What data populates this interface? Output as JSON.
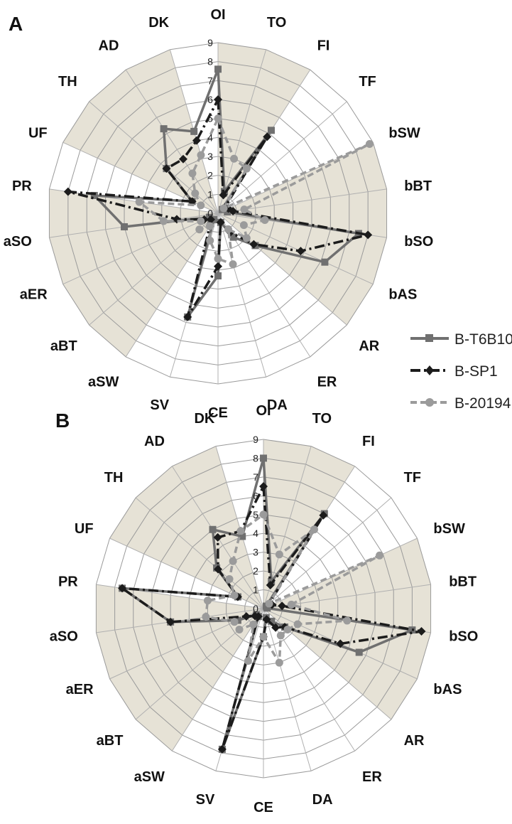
{
  "colors": {
    "shade": "#e6e2d6",
    "grid": "#9a9a9a",
    "spoke": "#b0b0b0"
  },
  "chart_data": [
    {
      "type": "radar",
      "panel": "A",
      "categories": [
        "OI",
        "TO",
        "FI",
        "TF",
        "bSW",
        "bBT",
        "bSO",
        "bAS",
        "AR",
        "ER",
        "DA",
        "CE",
        "SV",
        "aSW",
        "aBT",
        "aER",
        "aSO",
        "PR",
        "UF",
        "TH",
        "AD",
        "DK"
      ],
      "shaded_categories": [
        "OI",
        "TO",
        "bSW",
        "bBT",
        "bSO",
        "bAS",
        "aSW",
        "aBT",
        "aER",
        "aSO",
        "UF",
        "TH",
        "AD"
      ],
      "rticks": [
        "0",
        "1",
        "2",
        "3",
        "4",
        "5",
        "6",
        "7",
        "8",
        "9"
      ],
      "rlim": [
        0,
        9
      ],
      "series": [
        {
          "name": "B-T6B10",
          "color": "#707070",
          "style": "solid",
          "marker": "square",
          "values": [
            7.6,
            1.2,
            5.2,
            0.3,
            0.5,
            0.5,
            7.5,
            6.2,
            2.6,
            1.5,
            0.5,
            3.3,
            5.7,
            0.4,
            0.5,
            0.5,
            5.0,
            6.6,
            1.5,
            3.6,
            5.3,
            4.5
          ]
        },
        {
          "name": "B-SP1",
          "color": "#1c1c1c",
          "style": "dashdot",
          "marker": "diamond",
          "values": [
            6.0,
            1.0,
            4.8,
            0.5,
            0.6,
            0.8,
            8.0,
            4.8,
            2.5,
            1.2,
            0.5,
            2.8,
            5.7,
            0.8,
            0.5,
            0.8,
            2.2,
            8.0,
            1.5,
            3.6,
            3.4,
            4.0
          ]
        },
        {
          "name": "B-20194",
          "color": "#9b9b9b",
          "style": "dashed",
          "marker": "circle",
          "values": [
            5.0,
            3.0,
            2.8,
            0.4,
            8.8,
            1.4,
            2.5,
            1.5,
            2.0,
            1.0,
            2.8,
            2.4,
            1.5,
            0.8,
            1.3,
            1.0,
            2.9,
            4.2,
            1.0,
            1.6,
            2.5,
            3.2
          ]
        }
      ]
    },
    {
      "type": "radar",
      "panel": "B",
      "categories": [
        "OI",
        "TO",
        "FI",
        "TF",
        "bSW",
        "bBT",
        "bSO",
        "bAS",
        "AR",
        "ER",
        "DA",
        "CE",
        "SV",
        "aSW",
        "aBT",
        "aER",
        "aSO",
        "PR",
        "UF",
        "TH",
        "AD",
        "DK"
      ],
      "shaded_categories": [
        "OI",
        "TO",
        "bSW",
        "bBT",
        "bSO",
        "bAS",
        "aSW",
        "aBT",
        "aER",
        "aSO",
        "UF",
        "TH",
        "AD"
      ],
      "rticks": [
        "0",
        "1",
        "2",
        "3",
        "4",
        "5",
        "6",
        "7",
        "8",
        "9"
      ],
      "rlim": [
        0,
        9
      ],
      "series": [
        {
          "name": "B-T6B10",
          "color": "#707070",
          "style": "solid",
          "marker": "square",
          "values": [
            8.0,
            1.5,
            6.0,
            0.2,
            0.2,
            0.2,
            8.0,
            5.6,
            1.5,
            0.8,
            0.5,
            1.5,
            7.8,
            0.5,
            0.5,
            1.5,
            5.0,
            7.6,
            1.5,
            3.3,
            5.0,
            4.0
          ]
        },
        {
          "name": "B-SP1",
          "color": "#1c1c1c",
          "style": "dashdot",
          "marker": "diamond",
          "values": [
            6.5,
            1.3,
            5.9,
            0.4,
            0.5,
            1.0,
            8.5,
            4.5,
            1.5,
            1.2,
            0.6,
            1.5,
            7.8,
            0.5,
            0.6,
            1.0,
            5.0,
            7.6,
            1.5,
            3.2,
            4.5,
            4.3
          ]
        },
        {
          "name": "B-20194",
          "color": "#9b9b9b",
          "style": "dashed",
          "marker": "circle",
          "values": [
            5.0,
            3.0,
            5.0,
            0.4,
            6.8,
            1.5,
            4.5,
            2.0,
            1.7,
            1.7,
            3.0,
            1.5,
            2.9,
            1.0,
            1.7,
            1.7,
            3.1,
            3.0,
            1.7,
            2.4,
            3.0,
            4.3
          ]
        }
      ]
    }
  ]
}
